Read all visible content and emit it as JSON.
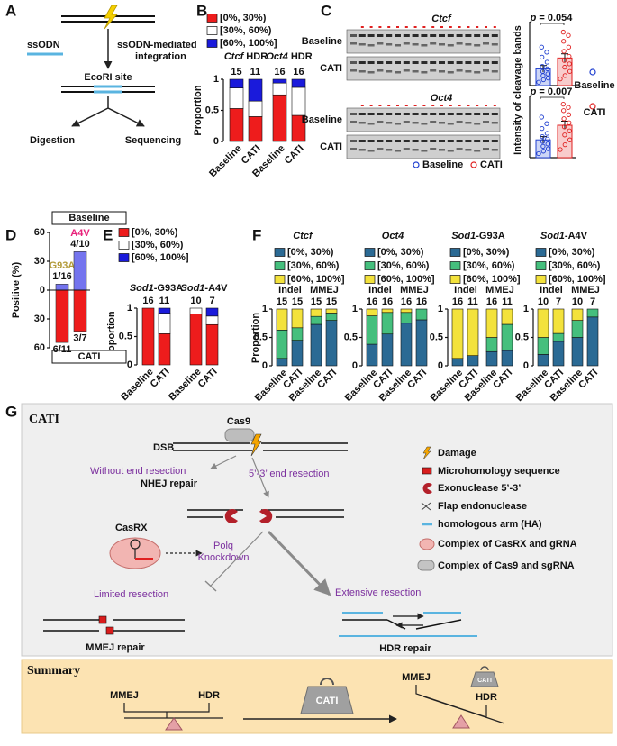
{
  "panels": {
    "A": {
      "label": "A",
      "ssodn": "ssODN",
      "integration": [
        "ssODN-mediated",
        "integration"
      ],
      "site": "EcoRI site",
      "digestion": "Digestion",
      "sequencing": "Sequencing"
    },
    "B": {
      "label": "B",
      "type": "bar",
      "stacked": true,
      "legend": [
        "[0%, 30%)",
        "[30%, 60%)",
        "[60%, 100%]"
      ],
      "colors": [
        "#ee1c1c",
        "#ffffff",
        "#1a1adb"
      ],
      "ylabel": "Proportion",
      "ylim": [
        0,
        1
      ],
      "yticks": [
        0,
        0.5,
        1
      ],
      "groups": [
        {
          "gene": "Ctcf",
          "suffix": " HDR",
          "bars": [
            {
              "category": "Baseline",
              "n": 15,
              "values": [
                0.53,
                0.33,
                0.14
              ]
            },
            {
              "category": "CATI",
              "n": 11,
              "values": [
                0.4,
                0.25,
                0.35
              ]
            }
          ]
        },
        {
          "gene": "Oct4",
          "suffix": " HDR",
          "bars": [
            {
              "category": "Baseline",
              "n": 16,
              "values": [
                0.75,
                0.19,
                0.06
              ]
            },
            {
              "category": "CATI",
              "n": 16,
              "values": [
                0.42,
                0.45,
                0.13
              ]
            }
          ]
        }
      ]
    },
    "C": {
      "label": "C",
      "type": "bar",
      "gels": [
        {
          "gene": "Ctcf",
          "rows": [
            "Baseline",
            "CATI"
          ]
        },
        {
          "gene": "Oct4",
          "rows": [
            "Baseline",
            "CATI"
          ]
        }
      ],
      "ylabel": "Intensity of cleavage bands",
      "legend": [
        {
          "name": "Baseline",
          "color": "#1f3fd0",
          "fill": "#cdd6f6"
        },
        {
          "name": "CATI",
          "color": "#e02020",
          "fill": "#f8cccc"
        }
      ],
      "ylim": [
        0,
        0.7
      ],
      "plots": [
        {
          "stat": "p",
          "result": " = 0.054",
          "values": [
            0.2,
            0.33
          ],
          "errors": [
            0.04,
            0.05
          ],
          "points": [
            [
              0.04,
              0.07,
              0.09,
              0.12,
              0.14,
              0.17,
              0.2,
              0.23,
              0.28,
              0.34,
              0.4,
              0.46
            ],
            [
              0.08,
              0.12,
              0.17,
              0.22,
              0.26,
              0.3,
              0.35,
              0.41,
              0.46,
              0.53,
              0.6,
              0.64
            ]
          ]
        },
        {
          "stat": "p",
          "result": " = 0.007",
          "values": [
            0.22,
            0.4
          ],
          "errors": [
            0.04,
            0.05
          ],
          "points": [
            [
              0.05,
              0.08,
              0.11,
              0.14,
              0.17,
              0.2,
              0.23,
              0.26,
              0.3,
              0.36,
              0.42,
              0.5
            ],
            [
              0.1,
              0.16,
              0.22,
              0.28,
              0.33,
              0.38,
              0.43,
              0.48,
              0.53,
              0.58,
              0.62,
              0.66
            ]
          ]
        }
      ]
    },
    "D": {
      "label": "D",
      "type": "bar",
      "ylabel": "Positive (%)",
      "categories": [
        "G93A",
        "A4V"
      ],
      "category_colors": [
        "#b39b3a",
        "#e8207a"
      ],
      "halves": [
        {
          "name": "Baseline",
          "color": "#7474ee",
          "direction": "up",
          "ylim": [
            0,
            60
          ],
          "yticks": [
            0,
            30,
            60
          ],
          "values": [
            6.25,
            40
          ],
          "value_labels": [
            "1/16",
            "4/10"
          ]
        },
        {
          "name": "CATI",
          "color": "#ee1c1c",
          "direction": "down",
          "ylim": [
            0,
            60
          ],
          "yticks": [
            30,
            60
          ],
          "values": [
            54.5,
            42.9
          ],
          "value_labels": [
            "6/11",
            "3/7"
          ]
        }
      ]
    },
    "E": {
      "label": "E",
      "type": "bar",
      "stacked": true,
      "legend": [
        "[0%, 30%)",
        "[30%, 60%)",
        "[60%, 100%]"
      ],
      "colors": [
        "#ee1c1c",
        "#ffffff",
        "#1a1adb"
      ],
      "ylabel": "Proportion",
      "ylim": [
        0,
        1
      ],
      "yticks": [
        0,
        0.5,
        1
      ],
      "groups": [
        {
          "gene": "Sod1",
          "suffix": "-G93A",
          "bars": [
            {
              "category": "Baseline",
              "n": 16,
              "values": [
                1,
                0,
                0
              ]
            },
            {
              "category": "CATI",
              "n": 11,
              "values": [
                0.55,
                0.36,
                0.09
              ]
            }
          ]
        },
        {
          "gene": "Sod1",
          "suffix": "-A4V",
          "bars": [
            {
              "category": "Baseline",
              "n": 10,
              "values": [
                0.9,
                0.1,
                0
              ]
            },
            {
              "category": "CATI",
              "n": 7,
              "values": [
                0.71,
                0.15,
                0.14
              ]
            }
          ]
        }
      ]
    },
    "F": {
      "label": "F",
      "type": "bar",
      "stacked": true,
      "legend": [
        "[0%, 30%)",
        "[30%, 60%)",
        "[60%, 100%]"
      ],
      "colors": [
        "#2b6a94",
        "#45bf7d",
        "#f3e23c"
      ],
      "ylabel": "Proportion",
      "ylim": [
        0,
        1
      ],
      "yticks": [
        0,
        0.5,
        1
      ],
      "groups": [
        {
          "gene": "Ctcf",
          "suffix": "",
          "subgroups": [
            {
              "name": "Indel",
              "bars": [
                {
                  "category": "Baseline",
                  "n": 15,
                  "values": [
                    0.13,
                    0.5,
                    0.37
                  ]
                },
                {
                  "category": "CATI",
                  "n": 15,
                  "values": [
                    0.45,
                    0.22,
                    0.33
                  ]
                }
              ]
            },
            {
              "name": "MMEJ",
              "bars": [
                {
                  "category": "Baseline",
                  "n": 15,
                  "values": [
                    0.73,
                    0.14,
                    0.13
                  ]
                },
                {
                  "category": "CATI",
                  "n": 15,
                  "values": [
                    0.8,
                    0.13,
                    0.07
                  ]
                }
              ]
            }
          ]
        },
        {
          "gene": "Oct4",
          "suffix": "",
          "subgroups": [
            {
              "name": "Indel",
              "bars": [
                {
                  "category": "Baseline",
                  "n": 16,
                  "values": [
                    0.38,
                    0.5,
                    0.12
                  ]
                },
                {
                  "category": "CATI",
                  "n": 16,
                  "values": [
                    0.56,
                    0.38,
                    0.06
                  ]
                }
              ]
            },
            {
              "name": "MMEJ",
              "bars": [
                {
                  "category": "Baseline",
                  "n": 16,
                  "values": [
                    0.75,
                    0.19,
                    0.06
                  ]
                },
                {
                  "category": "CATI",
                  "n": 16,
                  "values": [
                    0.81,
                    0.19,
                    0
                  ]
                }
              ]
            }
          ]
        },
        {
          "gene": "Sod1",
          "suffix": "-G93A",
          "subgroups": [
            {
              "name": "Indel",
              "bars": [
                {
                  "category": "Baseline",
                  "n": 16,
                  "values": [
                    0.13,
                    0,
                    0.87
                  ]
                },
                {
                  "category": "CATI",
                  "n": 11,
                  "values": [
                    0.18,
                    0,
                    0.82
                  ]
                }
              ]
            },
            {
              "name": "MMEJ",
              "bars": [
                {
                  "category": "Baseline",
                  "n": 16,
                  "values": [
                    0.25,
                    0.25,
                    0.5
                  ]
                },
                {
                  "category": "CATI",
                  "n": 11,
                  "values": [
                    0.27,
                    0.46,
                    0.27
                  ]
                }
              ]
            }
          ]
        },
        {
          "gene": "Sod1",
          "suffix": "-A4V",
          "subgroups": [
            {
              "name": "Indel",
              "bars": [
                {
                  "category": "Baseline",
                  "n": 10,
                  "values": [
                    0.2,
                    0.3,
                    0.5
                  ]
                },
                {
                  "category": "CATI",
                  "n": 7,
                  "values": [
                    0.43,
                    0.14,
                    0.43
                  ]
                }
              ]
            },
            {
              "name": "MMEJ",
              "bars": [
                {
                  "category": "Baseline",
                  "n": 10,
                  "values": [
                    0.5,
                    0.3,
                    0.2
                  ]
                },
                {
                  "category": "CATI",
                  "n": 7,
                  "values": [
                    0.86,
                    0.14,
                    0
                  ]
                }
              ]
            }
          ]
        }
      ]
    },
    "G": {
      "label": "G",
      "title": "CATI",
      "cas9": "Cas9",
      "dsb": "DSB",
      "without": "Without end resection",
      "nhej": "NHEJ repair",
      "end_resection": "5’-3’ end resection",
      "casrx": "CasRX",
      "polq": [
        "Polq",
        "Knockdown"
      ],
      "limited": "Limited resection",
      "mmej_repair": "MMEJ repair",
      "extensive": "Extensive resection",
      "hdr_repair": "HDR repair",
      "legend": [
        "Damage",
        "Microhomology sequence",
        "Exonuclease 5’-3’",
        "Flap endonuclease",
        "homologous arm (HA)",
        "Complex of CasRX and gRNA",
        "Complex of Cas9 and sgRNA"
      ],
      "summary": {
        "title": "Summary",
        "left": [
          "MMEJ",
          "HDR"
        ],
        "weight": "CATI",
        "right": [
          "MMEJ",
          "HDR"
        ],
        "small_weight": "CATI"
      }
    }
  }
}
